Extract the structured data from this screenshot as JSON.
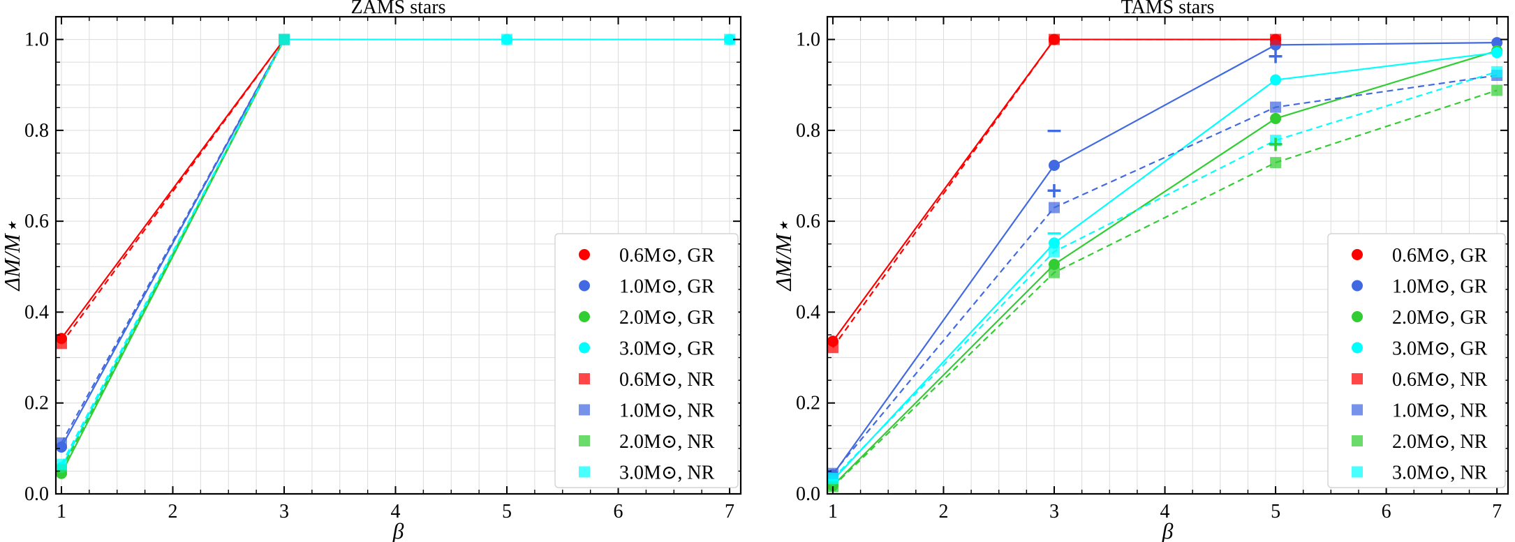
{
  "chart_data": [
    {
      "type": "line",
      "title": "ZAMS stars",
      "xlabel": "β",
      "ylabel": "ΔM/M⋆",
      "xlim": [
        0.95,
        7.1
      ],
      "ylim": [
        0.0,
        1.05
      ],
      "xticks": [
        "1",
        "2",
        "3",
        "4",
        "5",
        "6",
        "7"
      ],
      "yticks": [
        "0.0",
        "0.2",
        "0.4",
        "0.6",
        "0.8",
        "1.0"
      ],
      "grid": true,
      "legend_position": "lower-right",
      "series": [
        {
          "name": "0.6M⊙, GR",
          "color": "#ff0000",
          "marker": "circle",
          "linestyle": "solid",
          "points": [
            [
              1,
              0.342
            ],
            [
              3,
              1.0
            ]
          ]
        },
        {
          "name": "1.0M⊙, GR",
          "color": "#4169e1",
          "marker": "circle",
          "linestyle": "solid",
          "points": [
            [
              1,
              0.103
            ],
            [
              3,
              1.0
            ]
          ]
        },
        {
          "name": "2.0M⊙, GR",
          "color": "#32cd32",
          "marker": "circle",
          "linestyle": "solid",
          "points": [
            [
              1,
              0.045
            ],
            [
              3,
              1.0
            ]
          ]
        },
        {
          "name": "3.0M⊙, GR",
          "color": "#00ffff",
          "marker": "circle",
          "linestyle": "solid",
          "points": [
            [
              1,
              0.058
            ],
            [
              3,
              1.0
            ],
            [
              5,
              1.0
            ],
            [
              7,
              1.0
            ]
          ]
        },
        {
          "name": "0.6M⊙, NR",
          "color": "#ff0000",
          "marker": "square",
          "linestyle": "dashed",
          "points": [
            [
              1,
              0.331
            ],
            [
              3,
              1.0
            ]
          ]
        },
        {
          "name": "1.0M⊙, NR",
          "color": "#4169e1",
          "marker": "square",
          "linestyle": "dashed",
          "points": [
            [
              1,
              0.112
            ],
            [
              3,
              1.0
            ]
          ]
        },
        {
          "name": "2.0M⊙, NR",
          "color": "#32cd32",
          "marker": "square",
          "linestyle": "dashed",
          "points": [
            [
              1,
              0.053
            ],
            [
              3,
              1.0
            ]
          ]
        },
        {
          "name": "3.0M⊙, NR",
          "color": "#00ffff",
          "marker": "square",
          "linestyle": "dashed",
          "points": [
            [
              1,
              0.065
            ],
            [
              3,
              1.0
            ],
            [
              5,
              1.0
            ],
            [
              7,
              1.0
            ]
          ]
        }
      ]
    },
    {
      "type": "line",
      "title": "TAMS stars",
      "xlabel": "β",
      "ylabel": "ΔM/M⋆",
      "xlim": [
        0.95,
        7.1
      ],
      "ylim": [
        0.0,
        1.05
      ],
      "xticks": [
        "1",
        "2",
        "3",
        "4",
        "5",
        "6",
        "7"
      ],
      "yticks": [
        "0.0",
        "0.2",
        "0.4",
        "0.6",
        "0.8",
        "1.0"
      ],
      "grid": true,
      "legend_position": "lower-right",
      "series": [
        {
          "name": "0.6M⊙, GR",
          "color": "#ff0000",
          "marker": "circle",
          "linestyle": "solid",
          "points": [
            [
              1,
              0.336
            ],
            [
              3,
              1.0
            ],
            [
              5,
              1.0
            ]
          ]
        },
        {
          "name": "1.0M⊙, GR",
          "color": "#4169e1",
          "marker": "circle",
          "linestyle": "solid",
          "points": [
            [
              1,
              0.042
            ],
            [
              3,
              0.723
            ],
            [
              5,
              0.988
            ],
            [
              7,
              0.993
            ]
          ]
        },
        {
          "name": "2.0M⊙, GR",
          "color": "#32cd32",
          "marker": "circle",
          "linestyle": "solid",
          "points": [
            [
              1,
              0.018
            ],
            [
              3,
              0.505
            ],
            [
              5,
              0.826
            ],
            [
              7,
              0.975
            ]
          ]
        },
        {
          "name": "3.0M⊙, GR",
          "color": "#00ffff",
          "marker": "circle",
          "linestyle": "solid",
          "points": [
            [
              1,
              0.03
            ],
            [
              3,
              0.552
            ],
            [
              5,
              0.911
            ],
            [
              7,
              0.971
            ]
          ]
        },
        {
          "name": "0.6M⊙, NR",
          "color": "#ff0000",
          "marker": "square",
          "linestyle": "dashed",
          "points": [
            [
              1,
              0.322
            ],
            [
              3,
              1.0
            ],
            [
              5,
              1.0
            ]
          ]
        },
        {
          "name": "1.0M⊙, NR",
          "color": "#4169e1",
          "marker": "square",
          "linestyle": "dashed",
          "points": [
            [
              1,
              0.045
            ],
            [
              3,
              0.63
            ],
            [
              5,
              0.851
            ],
            [
              7,
              0.921
            ]
          ]
        },
        {
          "name": "2.0M⊙, NR",
          "color": "#32cd32",
          "marker": "square",
          "linestyle": "dashed",
          "points": [
            [
              1,
              0.016
            ],
            [
              3,
              0.487
            ],
            [
              5,
              0.729
            ],
            [
              7,
              0.888
            ]
          ]
        },
        {
          "name": "3.0M⊙, NR",
          "color": "#00ffff",
          "marker": "square",
          "linestyle": "dashed",
          "points": [
            [
              1,
              0.034
            ],
            [
              3,
              0.533
            ],
            [
              5,
              0.778
            ],
            [
              7,
              0.929
            ]
          ]
        }
      ],
      "annotations": [
        {
          "symbol": "−",
          "color": "#4169e1",
          "x": 3,
          "y": 0.8
        },
        {
          "symbol": "+",
          "color": "#4169e1",
          "x": 3,
          "y": 0.668
        },
        {
          "symbol": "+",
          "color": "#4169e1",
          "x": 5,
          "y": 0.963
        },
        {
          "symbol": "−",
          "color": "#00ffff",
          "x": 3,
          "y": 0.574
        },
        {
          "symbol": "+",
          "color": "#32cd32",
          "x": 5,
          "y": 0.77
        }
      ]
    }
  ]
}
